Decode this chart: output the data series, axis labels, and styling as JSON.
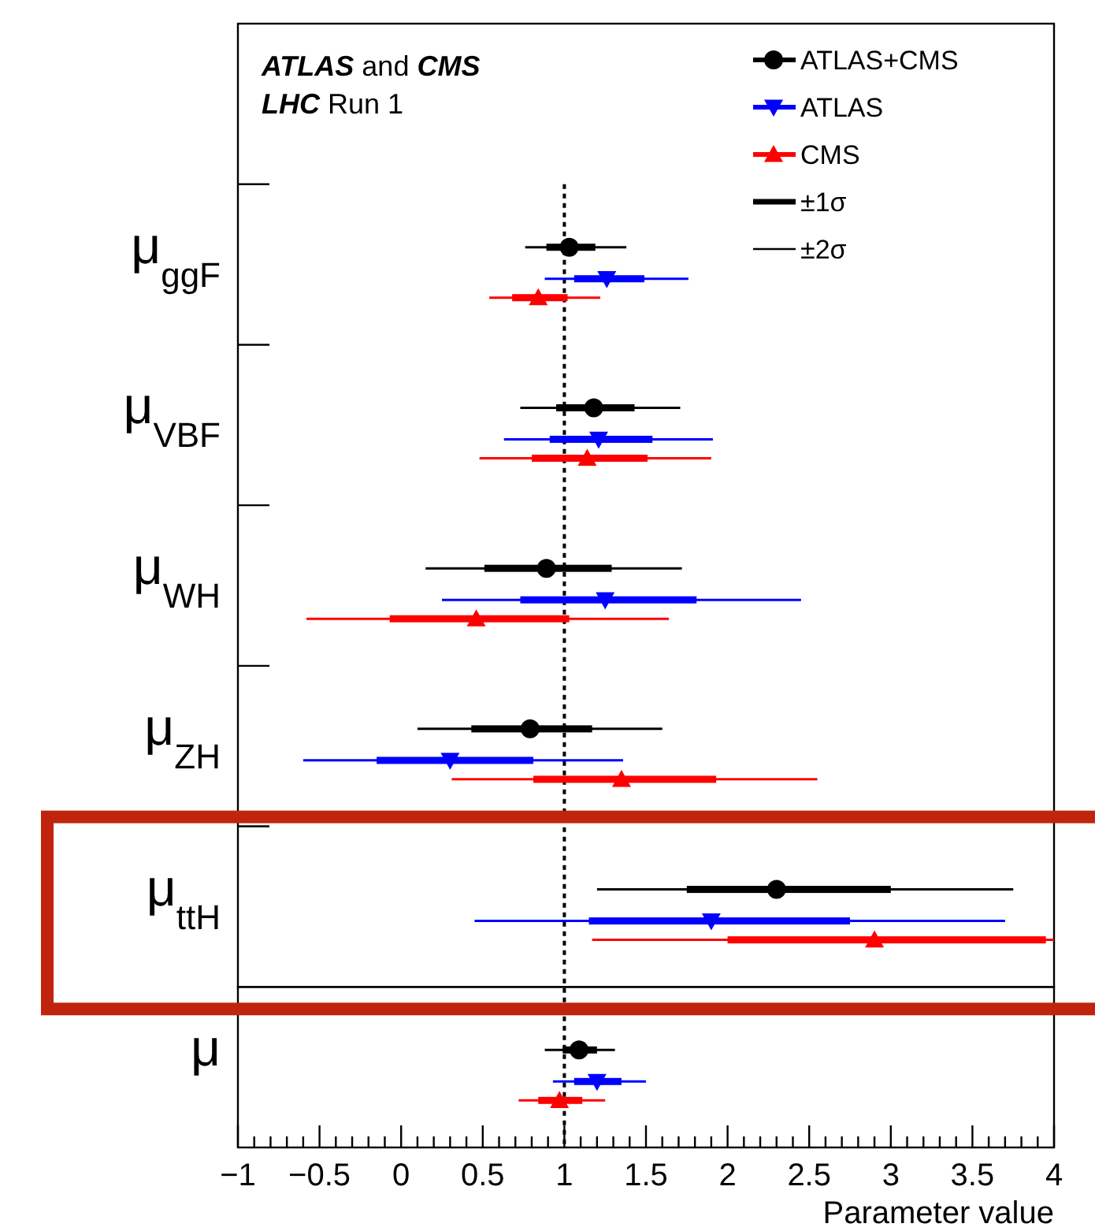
{
  "chart_data": {
    "type": "box",
    "orientation": "horizontal",
    "xlabel": "Parameter value",
    "categories": [
      "μ$_{ggF}$",
      "μ$_{VBF}$",
      "μ$_{WH}$",
      "μ$_{ZH}$",
      "μ$_{ttH}$",
      "μ"
    ],
    "series": [
      {
        "name": "ATLAS+CMS",
        "color": "#000000",
        "marker": "circle",
        "boxes": [
          {
            "low": 0.76,
            "q1": 0.89,
            "median": 1.03,
            "q3": 1.19,
            "high": 1.38
          },
          {
            "low": 0.73,
            "q1": 0.95,
            "median": 1.18,
            "q3": 1.43,
            "high": 1.71
          },
          {
            "low": 0.15,
            "q1": 0.51,
            "median": 0.89,
            "q3": 1.29,
            "high": 1.72
          },
          {
            "low": 0.1,
            "q1": 0.43,
            "median": 0.79,
            "q3": 1.17,
            "high": 1.6
          },
          {
            "low": 1.2,
            "q1": 1.75,
            "median": 2.3,
            "q3": 3.0,
            "high": 3.75
          },
          {
            "low": 0.88,
            "q1": 0.99,
            "median": 1.09,
            "q3": 1.2,
            "high": 1.31
          }
        ]
      },
      {
        "name": "ATLAS",
        "color": "#0000ff",
        "marker": "triangle-down",
        "boxes": [
          {
            "low": 0.88,
            "q1": 1.06,
            "median": 1.26,
            "q3": 1.49,
            "high": 1.76
          },
          {
            "low": 0.63,
            "q1": 0.91,
            "median": 1.21,
            "q3": 1.54,
            "high": 1.91
          },
          {
            "low": 0.25,
            "q1": 0.73,
            "median": 1.25,
            "q3": 1.81,
            "high": 2.45
          },
          {
            "low": -0.6,
            "q1": -0.15,
            "median": 0.3,
            "q3": 0.81,
            "high": 1.36
          },
          {
            "low": 0.45,
            "q1": 1.15,
            "median": 1.9,
            "q3": 2.75,
            "high": 3.7
          },
          {
            "low": 0.93,
            "q1": 1.06,
            "median": 1.2,
            "q3": 1.35,
            "high": 1.5
          }
        ]
      },
      {
        "name": "CMS",
        "color": "#ff0000",
        "marker": "triangle",
        "boxes": [
          {
            "low": 0.54,
            "q1": 0.68,
            "median": 0.84,
            "q3": 1.02,
            "high": 1.22
          },
          {
            "low": 0.48,
            "q1": 0.8,
            "median": 1.14,
            "q3": 1.51,
            "high": 1.9
          },
          {
            "low": -0.58,
            "q1": -0.07,
            "median": 0.46,
            "q3": 1.03,
            "high": 1.64
          },
          {
            "low": 0.31,
            "q1": 0.81,
            "median": 1.35,
            "q3": 1.93,
            "high": 2.55
          },
          {
            "low": 1.17,
            "q1": 2.0,
            "median": 2.9,
            "q3": 3.95,
            "high": 4.0
          },
          {
            "low": 0.72,
            "q1": 0.84,
            "median": 0.97,
            "q3": 1.11,
            "high": 1.25
          }
        ]
      }
    ],
    "xlim": [
      -1,
      4
    ],
    "xticks": [
      -1,
      {
        "value": -0.9,
        "label": null
      },
      {
        "value": -0.8,
        "label": null
      },
      {
        "value": -0.7,
        "label": null
      },
      {
        "value": -0.6,
        "label": null
      },
      {
        "value": -0.5,
        "label": "−0.5"
      },
      {
        "value": -0.4,
        "label": null
      },
      {
        "value": -0.3,
        "label": null
      },
      {
        "value": -0.2,
        "label": null
      },
      {
        "value": -0.1,
        "label": null
      },
      0,
      {
        "value": 0.1,
        "label": null
      },
      {
        "value": 0.2,
        "label": null
      },
      {
        "value": 0.3,
        "label": null
      },
      {
        "value": 0.4,
        "label": null
      },
      0.5,
      {
        "value": 0.6,
        "label": null
      },
      {
        "value": 0.7,
        "label": null
      },
      {
        "value": 0.8,
        "label": null
      },
      {
        "value": 0.9,
        "label": null
      },
      1,
      {
        "value": 1.1,
        "label": null
      },
      {
        "value": 1.2,
        "label": null
      },
      {
        "value": 1.3,
        "label": null
      },
      {
        "value": 1.4,
        "label": null
      },
      1.5,
      {
        "value": 1.6,
        "label": null
      },
      {
        "value": 1.7,
        "label": null
      },
      {
        "value": 1.8,
        "label": null
      },
      {
        "value": 1.9,
        "label": null
      },
      2,
      {
        "value": 2.1,
        "label": null
      },
      {
        "value": 2.2,
        "label": null
      },
      {
        "value": 2.3,
        "label": null
      },
      {
        "value": 2.4,
        "label": null
      },
      2.5,
      {
        "value": 2.6,
        "label": null
      },
      {
        "value": 2.7,
        "label": null
      },
      {
        "value": 2.8,
        "label": null
      },
      {
        "value": 2.9,
        "label": null
      },
      3,
      {
        "value": 3.1,
        "label": null
      },
      {
        "value": 3.2,
        "label": null
      },
      {
        "value": 3.3,
        "label": null
      },
      {
        "value": 3.4,
        "label": null
      },
      3.5,
      {
        "value": 3.6,
        "label": null
      },
      {
        "value": 3.7,
        "label": null
      },
      {
        "value": 3.8,
        "label": null
      },
      {
        "value": 3.9,
        "label": null
      },
      4
    ],
    "ref_lines": [
      {
        "axis": "x",
        "value": 1,
        "line_style": "dotted",
        "color": "#000000"
      }
    ],
    "legend": "top right",
    "annotations": [
      "ATLAS and CMS",
      "LHC Run 1",
      "±1σ",
      "±2σ"
    ]
  }
}
